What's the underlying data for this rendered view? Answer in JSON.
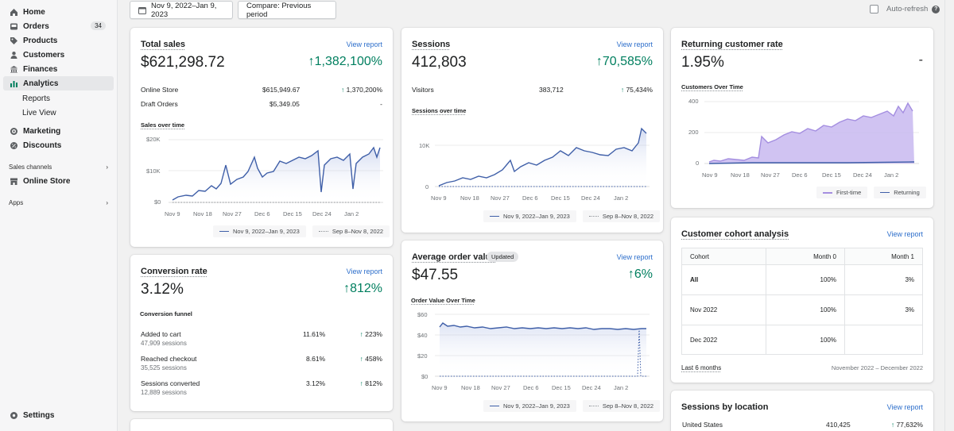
{
  "sidebar": {
    "items": [
      {
        "label": "Home",
        "icon": "home-icon"
      },
      {
        "label": "Orders",
        "icon": "orders-icon",
        "badge": "34"
      },
      {
        "label": "Products",
        "icon": "tag-icon"
      },
      {
        "label": "Customers",
        "icon": "person-icon"
      },
      {
        "label": "Finances",
        "icon": "bank-icon"
      },
      {
        "label": "Analytics",
        "icon": "bar-chart-icon"
      },
      {
        "label": "Reports"
      },
      {
        "label": "Live View"
      },
      {
        "label": "Marketing",
        "icon": "target-icon"
      },
      {
        "label": "Discounts",
        "icon": "discount-icon"
      },
      {
        "label": "Online Store",
        "icon": "store-icon"
      },
      {
        "label": "Settings",
        "icon": "gear-icon"
      }
    ],
    "sales_channels": "Sales channels",
    "apps": "Apps"
  },
  "toolbar": {
    "date_range": "Nov 9, 2022–Jan 9, 2023",
    "compare": "Compare: Previous period",
    "auto_refresh": "Auto-refresh"
  },
  "common": {
    "view_report": "View report"
  },
  "total_sales": {
    "title": "Total sales",
    "value": "$621,298.72",
    "change": "1,382,100%",
    "rows": [
      {
        "label": "Online Store",
        "value": "$615,949.67",
        "change": "1,370,200%"
      },
      {
        "label": "Draft Orders",
        "value": "$5,349.05",
        "change": "-"
      }
    ],
    "chart_title": "Sales over time",
    "y_ticks": [
      "$20K",
      "$10K",
      "$0"
    ],
    "x_ticks": [
      "Nov 9",
      "Nov 18",
      "Nov 27",
      "Dec 6",
      "Dec 15",
      "Dec 24",
      "Jan 2"
    ],
    "legend": [
      "Nov 9, 2022–Jan 9, 2023",
      "Sep 8–Nov 8, 2022"
    ]
  },
  "sessions": {
    "title": "Sessions",
    "value": "412,803",
    "change": "70,585%",
    "rows": [
      {
        "label": "Visitors",
        "value": "383,712",
        "change": "75,434%"
      }
    ],
    "chart_title": "Sessions over time",
    "y_ticks": [
      "10K",
      "0"
    ],
    "x_ticks": [
      "Nov 9",
      "Nov 18",
      "Nov 27",
      "Dec 6",
      "Dec 15",
      "Dec 24",
      "Jan 2"
    ],
    "legend": [
      "Nov 9, 2022–Jan 9, 2023",
      "Sep 8–Nov 8, 2022"
    ]
  },
  "returning": {
    "title": "Returning customer rate",
    "value": "1.95%",
    "change": "-",
    "chart_title": "Customers Over Time",
    "y_ticks": [
      "400",
      "200",
      "0"
    ],
    "x_ticks": [
      "Nov 9",
      "Nov 18",
      "Nov 27",
      "Dec 6",
      "Dec 15",
      "Dec 24",
      "Jan 2"
    ],
    "legend": [
      "First-time",
      "Returning"
    ]
  },
  "conversion": {
    "title": "Conversion rate",
    "value": "3.12%",
    "change": "812%",
    "funnel_title": "Conversion funnel",
    "rows": [
      {
        "label": "Added to cart",
        "sub": "47,909 sessions",
        "value": "11.61%",
        "change": "223%"
      },
      {
        "label": "Reached checkout",
        "sub": "35,525 sessions",
        "value": "8.61%",
        "change": "458%"
      },
      {
        "label": "Sessions converted",
        "sub": "12,889 sessions",
        "value": "3.12%",
        "change": "812%"
      }
    ]
  },
  "aov": {
    "title": "Average order value",
    "badge": "Updated",
    "value": "$47.55",
    "change": "6%",
    "chart_title": "Order Value Over Time",
    "y_ticks": [
      "$60",
      "$40",
      "$20",
      "$0"
    ],
    "x_ticks": [
      "Nov 9",
      "Nov 18",
      "Nov 27",
      "Dec 6",
      "Dec 15",
      "Dec 24",
      "Jan 2"
    ],
    "legend": [
      "Nov 9, 2022–Jan 9, 2023",
      "Sep 8–Nov 8, 2022"
    ]
  },
  "cohort": {
    "title": "Customer cohort analysis",
    "headers": [
      "Cohort",
      "Month 0",
      "Month 1"
    ],
    "rows": [
      [
        "All",
        "100%",
        "3%"
      ],
      [
        "Nov 2022",
        "100%",
        "3%"
      ],
      [
        "Dec 2022",
        "100%",
        ""
      ]
    ],
    "footer_left": "Last 6 months",
    "footer_right": "November 2022 – December 2022"
  },
  "location": {
    "title": "Sessions by location",
    "rows": [
      {
        "label": "United States",
        "value": "410,425",
        "change": "77,632%"
      }
    ]
  },
  "chart_data": [
    {
      "type": "line",
      "title": "Sales over time",
      "ylabel": "",
      "ylim": [
        0,
        25000
      ],
      "x": [
        "Nov 9",
        "Nov 18",
        "Nov 27",
        "Dec 6",
        "Dec 15",
        "Dec 24",
        "Jan 2"
      ],
      "series": [
        {
          "name": "Nov 9, 2022–Jan 9, 2023",
          "values": [
            0,
            3000,
            7000,
            11000,
            13000,
            14500,
            16000
          ]
        },
        {
          "name": "Sep 8–Nov 8, 2022",
          "values": [
            0,
            0,
            0,
            0,
            0,
            0,
            0
          ]
        }
      ]
    },
    {
      "type": "line",
      "title": "Sessions over time",
      "ylim": [
        0,
        20000
      ],
      "x": [
        "Nov 9",
        "Nov 18",
        "Nov 27",
        "Dec 6",
        "Dec 15",
        "Dec 24",
        "Jan 2"
      ],
      "series": [
        {
          "name": "Nov 9, 2022–Jan 9, 2023",
          "values": [
            0,
            2000,
            3000,
            7000,
            8500,
            9500,
            12000
          ]
        },
        {
          "name": "Sep 8–Nov 8, 2022",
          "values": [
            0,
            0,
            0,
            0,
            0,
            0,
            0
          ]
        }
      ]
    },
    {
      "type": "area",
      "title": "Customers Over Time",
      "ylim": [
        0,
        400
      ],
      "x": [
        "Nov 9",
        "Nov 18",
        "Nov 27",
        "Dec 6",
        "Dec 15",
        "Dec 24",
        "Jan 2"
      ],
      "series": [
        {
          "name": "First-time",
          "values": [
            0,
            20,
            130,
            190,
            220,
            250,
            290
          ]
        },
        {
          "name": "Returning",
          "values": [
            0,
            1,
            2,
            3,
            4,
            4,
            5
          ]
        }
      ]
    },
    {
      "type": "line",
      "title": "Order Value Over Time",
      "ylim": [
        0,
        60
      ],
      "x": [
        "Nov 9",
        "Nov 18",
        "Nov 27",
        "Dec 6",
        "Dec 15",
        "Dec 24",
        "Jan 2"
      ],
      "series": [
        {
          "name": "Nov 9, 2022–Jan 9, 2023",
          "values": [
            47,
            46,
            46,
            46,
            47,
            46,
            46
          ]
        },
        {
          "name": "Sep 8–Nov 8, 2022",
          "values": [
            0,
            0,
            0,
            0,
            0,
            0,
            0
          ]
        }
      ]
    }
  ]
}
